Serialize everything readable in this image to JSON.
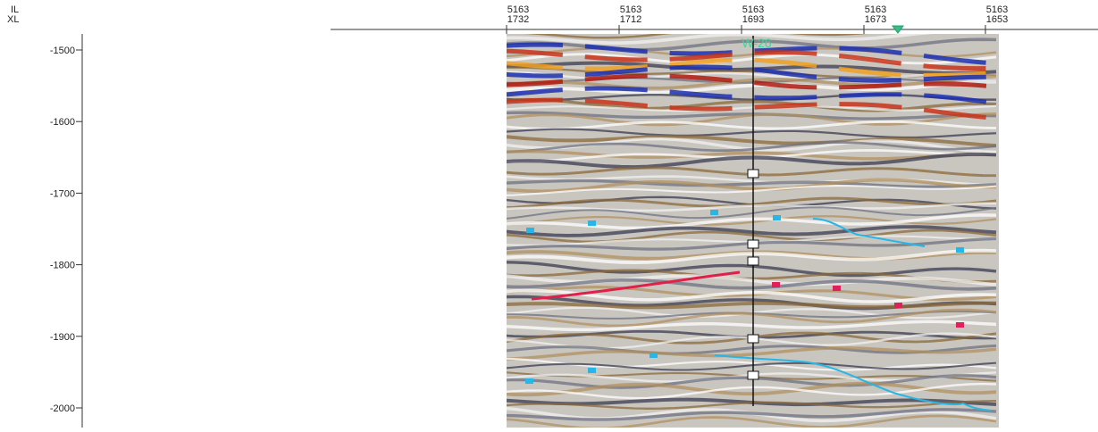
{
  "axes": {
    "top_labels": [
      "IL",
      "XL"
    ],
    "x_ticks": [
      {
        "il": "5163",
        "xl": "1732"
      },
      {
        "il": "5163",
        "xl": "1712"
      },
      {
        "il": "5163",
        "xl": "1693"
      },
      {
        "il": "5163",
        "xl": "1673"
      },
      {
        "il": "5163",
        "xl": "1653"
      }
    ],
    "y_ticks": [
      "-1500",
      "-1600",
      "-1700",
      "-1800",
      "-1900",
      "-2000"
    ]
  },
  "well": {
    "name": "W-26"
  }
}
